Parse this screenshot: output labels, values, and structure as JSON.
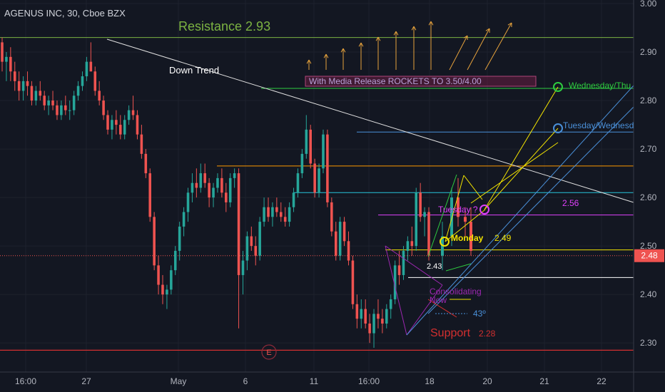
{
  "chart_data": {
    "type": "candlestick",
    "title": "AGENUS INC, 30, Cboe BZX",
    "symbol": "AGENUS INC",
    "interval": "30",
    "exchange": "Cboe BZX",
    "ylim": [
      2.24,
      3.0
    ],
    "y_ticks": [
      "3.00",
      "2.90",
      "2.80",
      "2.70",
      "2.60",
      "2.50",
      "2.40",
      "2.30"
    ],
    "x_ticks": [
      "16:00",
      "27",
      "May",
      "6",
      "11",
      "16:00",
      "18",
      "20",
      "21",
      "22"
    ],
    "last_price": "2.48",
    "colors": {
      "up": "#26a69a",
      "down": "#ef5350",
      "background": "#131722"
    },
    "bars": [
      [
        2.92,
        2.93,
        2.86,
        2.88
      ],
      [
        2.88,
        2.9,
        2.84,
        2.89
      ],
      [
        2.89,
        2.91,
        2.84,
        2.86
      ],
      [
        2.86,
        2.88,
        2.82,
        2.84
      ],
      [
        2.84,
        2.86,
        2.8,
        2.82
      ],
      [
        2.82,
        2.85,
        2.8,
        2.84
      ],
      [
        2.84,
        2.86,
        2.81,
        2.83
      ],
      [
        2.83,
        2.84,
        2.79,
        2.8
      ],
      [
        2.8,
        2.83,
        2.79,
        2.82
      ],
      [
        2.82,
        2.84,
        2.8,
        2.81
      ],
      [
        2.81,
        2.82,
        2.78,
        2.79
      ],
      [
        2.79,
        2.81,
        2.77,
        2.8
      ],
      [
        2.8,
        2.82,
        2.78,
        2.79
      ],
      [
        2.79,
        2.8,
        2.76,
        2.77
      ],
      [
        2.77,
        2.8,
        2.76,
        2.79
      ],
      [
        2.79,
        2.81,
        2.77,
        2.78
      ],
      [
        2.78,
        2.8,
        2.76,
        2.78
      ],
      [
        2.78,
        2.82,
        2.77,
        2.81
      ],
      [
        2.81,
        2.84,
        2.8,
        2.83
      ],
      [
        2.83,
        2.86,
        2.82,
        2.85
      ],
      [
        2.85,
        2.89,
        2.84,
        2.88
      ],
      [
        2.88,
        2.92,
        2.86,
        2.86
      ],
      [
        2.86,
        2.87,
        2.81,
        2.82
      ],
      [
        2.82,
        2.84,
        2.79,
        2.8
      ],
      [
        2.8,
        2.81,
        2.76,
        2.77
      ],
      [
        2.77,
        2.78,
        2.73,
        2.74
      ],
      [
        2.74,
        2.77,
        2.72,
        2.76
      ],
      [
        2.76,
        2.78,
        2.73,
        2.75
      ],
      [
        2.75,
        2.77,
        2.72,
        2.73
      ],
      [
        2.73,
        2.77,
        2.72,
        2.76
      ],
      [
        2.76,
        2.79,
        2.75,
        2.78
      ],
      [
        2.78,
        2.81,
        2.76,
        2.77
      ],
      [
        2.77,
        2.78,
        2.72,
        2.73
      ],
      [
        2.73,
        2.75,
        2.68,
        2.69
      ],
      [
        2.69,
        2.7,
        2.64,
        2.65
      ],
      [
        2.65,
        2.66,
        2.55,
        2.56
      ],
      [
        2.56,
        2.57,
        2.45,
        2.46
      ],
      [
        2.46,
        2.48,
        2.4,
        2.42
      ],
      [
        2.42,
        2.44,
        2.38,
        2.4
      ],
      [
        2.4,
        2.42,
        2.37,
        2.41
      ],
      [
        2.41,
        2.46,
        2.4,
        2.45
      ],
      [
        2.45,
        2.5,
        2.44,
        2.49
      ],
      [
        2.49,
        2.55,
        2.47,
        2.54
      ],
      [
        2.54,
        2.58,
        2.52,
        2.57
      ],
      [
        2.57,
        2.62,
        2.55,
        2.61
      ],
      [
        2.61,
        2.65,
        2.59,
        2.63
      ],
      [
        2.63,
        2.66,
        2.6,
        2.62
      ],
      [
        2.62,
        2.67,
        2.61,
        2.65
      ],
      [
        2.65,
        2.67,
        2.62,
        2.63
      ],
      [
        2.63,
        2.64,
        2.58,
        2.6
      ],
      [
        2.6,
        2.63,
        2.58,
        2.62
      ],
      [
        2.62,
        2.65,
        2.61,
        2.64
      ],
      [
        2.64,
        2.66,
        2.6,
        2.61
      ],
      [
        2.61,
        2.63,
        2.57,
        2.59
      ],
      [
        2.59,
        2.65,
        2.58,
        2.64
      ],
      [
        2.64,
        2.66,
        2.62,
        2.65
      ],
      [
        2.65,
        2.66,
        2.33,
        2.44
      ],
      [
        2.44,
        2.49,
        2.4,
        2.47
      ],
      [
        2.47,
        2.53,
        2.45,
        2.52
      ],
      [
        2.52,
        2.54,
        2.49,
        2.5
      ],
      [
        2.5,
        2.52,
        2.46,
        2.48
      ],
      [
        2.48,
        2.56,
        2.47,
        2.55
      ],
      [
        2.55,
        2.6,
        2.54,
        2.58
      ],
      [
        2.58,
        2.6,
        2.55,
        2.56
      ],
      [
        2.56,
        2.59,
        2.54,
        2.58
      ],
      [
        2.58,
        2.6,
        2.56,
        2.57
      ],
      [
        2.57,
        2.59,
        2.55,
        2.56
      ],
      [
        2.56,
        2.58,
        2.54,
        2.55
      ],
      [
        2.55,
        2.59,
        2.54,
        2.58
      ],
      [
        2.58,
        2.62,
        2.57,
        2.61
      ],
      [
        2.61,
        2.66,
        2.6,
        2.65
      ],
      [
        2.65,
        2.7,
        2.64,
        2.69
      ],
      [
        2.69,
        2.77,
        2.68,
        2.74
      ],
      [
        2.74,
        2.75,
        2.66,
        2.67
      ],
      [
        2.67,
        2.68,
        2.6,
        2.61
      ],
      [
        2.61,
        2.67,
        2.6,
        2.66
      ],
      [
        2.66,
        2.74,
        2.65,
        2.73
      ],
      [
        2.73,
        2.74,
        2.58,
        2.59
      ],
      [
        2.59,
        2.6,
        2.52,
        2.53
      ],
      [
        2.53,
        2.55,
        2.47,
        2.48
      ],
      [
        2.48,
        2.56,
        2.47,
        2.55
      ],
      [
        2.55,
        2.56,
        2.5,
        2.51
      ],
      [
        2.51,
        2.53,
        2.46,
        2.47
      ],
      [
        2.47,
        2.48,
        2.37,
        2.38
      ],
      [
        2.38,
        2.4,
        2.33,
        2.35
      ],
      [
        2.35,
        2.39,
        2.33,
        2.37
      ],
      [
        2.37,
        2.39,
        2.33,
        2.34
      ],
      [
        2.34,
        2.36,
        2.3,
        2.32
      ],
      [
        2.32,
        2.37,
        2.29,
        2.36
      ],
      [
        2.36,
        2.39,
        2.33,
        2.35
      ],
      [
        2.35,
        2.37,
        2.32,
        2.34
      ],
      [
        2.34,
        2.38,
        2.33,
        2.37
      ],
      [
        2.37,
        2.4,
        2.35,
        2.39
      ],
      [
        2.39,
        2.47,
        2.38,
        2.46
      ],
      [
        2.46,
        2.49,
        2.42,
        2.44
      ],
      [
        2.44,
        2.5,
        2.43,
        2.49
      ],
      [
        2.49,
        2.52,
        2.47,
        2.51
      ],
      [
        2.51,
        2.54,
        2.48,
        2.5
      ],
      [
        2.5,
        2.62,
        2.49,
        2.61
      ],
      [
        2.61,
        2.63,
        2.55,
        2.56
      ],
      [
        2.56,
        2.58,
        2.52,
        2.57
      ],
      [
        2.57,
        2.58,
        2.47,
        2.48
      ]
    ],
    "annotations": {
      "resistance": {
        "text": "Resistance 2.93",
        "value": 2.93,
        "color": "#7cb342"
      },
      "support": {
        "text": "Support",
        "value_label": "2.28",
        "value": 2.285,
        "color": "#d32f2f"
      },
      "down_trend": {
        "text": "Down Trend"
      },
      "media_release": {
        "text": "With Media Release ROCKETS TO 3.50/4.00"
      },
      "monday": {
        "text": "Monday",
        "value_label": "2.49",
        "color": "#f2e300"
      },
      "tuesday": {
        "text": "Tuesday ?",
        "value_label": "2.56",
        "color": "#e040fb"
      },
      "tue_wed": {
        "text": "Tuesday/Wednesd",
        "color": "#4a90d9"
      },
      "wed_thu": {
        "text": "Wednesday/Thu",
        "color": "#2ecc40"
      },
      "consolidating": {
        "text": "Consolidating",
        "text2": "Now",
        "color": "#9c27b0"
      },
      "angle": {
        "text": "43º"
      },
      "low_label": {
        "text": "2.43"
      },
      "earnings": {
        "text": "E"
      }
    }
  }
}
